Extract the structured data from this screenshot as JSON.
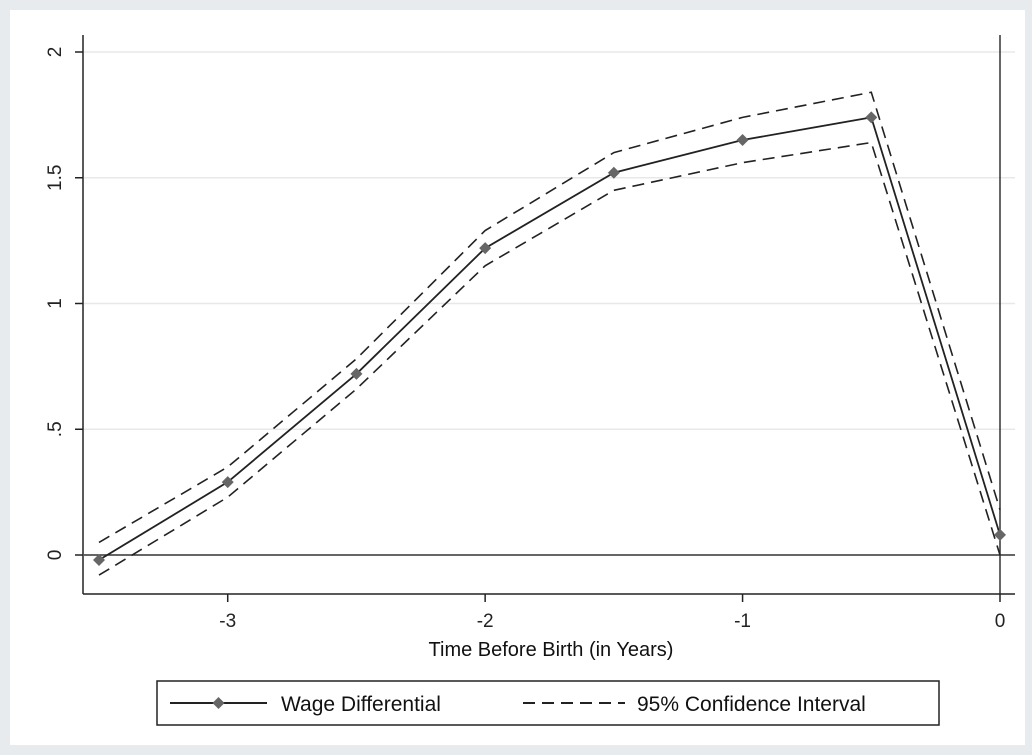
{
  "chart_data": {
    "type": "line",
    "title": "",
    "xlabel": "Time Before Birth (in Years)",
    "ylabel": "",
    "xlim": [
      -3.55,
      0.05
    ],
    "ylim": [
      -0.15,
      2.05
    ],
    "xticks": [
      -3,
      -2,
      -1,
      0
    ],
    "xtick_labels": [
      "-3",
      "-2",
      "-1",
      "0"
    ],
    "yticks": [
      0,
      0.5,
      1,
      1.5,
      2
    ],
    "ytick_labels": [
      "0",
      ".5",
      "1",
      "1.5",
      "2"
    ],
    "grid": "horizontal",
    "reference_lines": {
      "y": 0,
      "x": 0
    },
    "legend_position": "bottom-center",
    "x": [
      -3.5,
      -3.0,
      -2.5,
      -2.0,
      -1.5,
      -1.0,
      -0.5,
      0.0
    ],
    "series": [
      {
        "name": "Wage Differential",
        "style": "solid-with-diamond-markers",
        "color": "#222222",
        "marker_color": "#666666",
        "values": [
          -0.02,
          0.29,
          0.72,
          1.22,
          1.52,
          1.65,
          1.74,
          0.08
        ]
      },
      {
        "name": "95% Confidence Interval",
        "style": "dashed",
        "color": "#222222",
        "upper": [
          0.05,
          0.35,
          0.78,
          1.29,
          1.6,
          1.74,
          1.84,
          0.18
        ],
        "lower": [
          -0.08,
          0.23,
          0.66,
          1.15,
          1.45,
          1.56,
          1.64,
          0.0
        ]
      }
    ]
  }
}
